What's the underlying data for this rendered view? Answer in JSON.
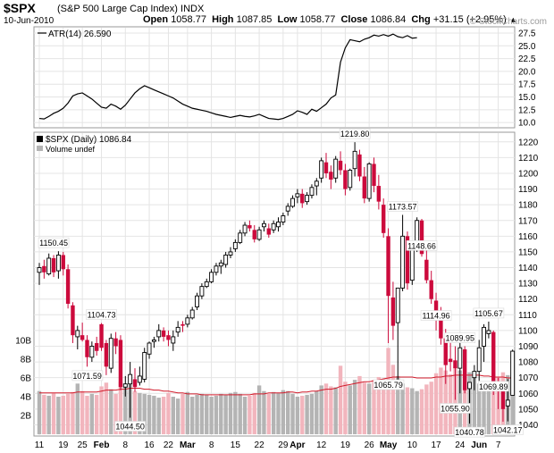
{
  "header": {
    "symbol": "$SPX",
    "name": "(S&P 500 Large Cap Index)",
    "exchange": "INDX",
    "date": "10-Jun-2010",
    "open_label": "Open",
    "open": "1058.77",
    "high_label": "High",
    "high": "1087.85",
    "low_label": "Low",
    "low": "1058.77",
    "close_label": "Close",
    "close": "1086.84",
    "chg_label": "Chg",
    "chg": "+31.15 (+2.95%)",
    "arrow": "▲",
    "watermark": "© StockCharts.com"
  },
  "colors": {
    "up": "#000000",
    "down": "#cc0a3c",
    "vol_up": "#b4b4b4",
    "vol_down": "#f2b5bd",
    "vol_ma": "#d11a2a",
    "atr": "#000000"
  },
  "chart_data": [
    {
      "type": "line",
      "title": "ATR(14) 26.590",
      "series": [
        {
          "name": "ATR(14)",
          "values": [
            10.8,
            10.7,
            11.2,
            11.8,
            12.2,
            12.8,
            13.8,
            15.2,
            15.6,
            15.8,
            15.2,
            14.6,
            13.8,
            13.0,
            12.8,
            13.6,
            13.2,
            12.6,
            13.4,
            14.6,
            15.8,
            16.6,
            17.2,
            16.8,
            16.4,
            16.0,
            15.6,
            15.2,
            14.8,
            14.2,
            13.6,
            13.2,
            12.8,
            12.6,
            12.4,
            12.2,
            11.9,
            11.6,
            11.4,
            11.2,
            11.0,
            11.2,
            11.4,
            11.2,
            11.1,
            11.3,
            11.6,
            11.2,
            10.8,
            10.7,
            10.6,
            10.8,
            11.2,
            11.6,
            12.3,
            12.0,
            11.6,
            12.6,
            12.2,
            12.9,
            13.6,
            14.8,
            15.4,
            21.8,
            24.6,
            26.2,
            26.0,
            25.8,
            26.3,
            26.6,
            27.1,
            26.9,
            27.2,
            26.9,
            27.3,
            26.8,
            26.6,
            27.0,
            26.5,
            26.59
          ]
        }
      ],
      "yticks": [
        10.0,
        12.5,
        15.0,
        17.5,
        20.0,
        22.5,
        25.0,
        27.5
      ],
      "ytick_labels": [
        "10.0",
        "12.5",
        "15.0",
        "17.5",
        "20.0",
        "22.5",
        "25.0",
        "27.5"
      ],
      "ylim": [
        9.5,
        28.2
      ]
    },
    {
      "type": "candlestick",
      "title": "$SPX (Daily) 1086.84",
      "legend": [
        "$SPX (Daily) 1086.84",
        "Volume undef"
      ],
      "ylim": [
        1034,
        1225
      ],
      "yticks": [
        1040,
        1050,
        1060,
        1070,
        1080,
        1090,
        1100,
        1110,
        1120,
        1130,
        1140,
        1150,
        1160,
        1170,
        1180,
        1190,
        1200,
        1210,
        1220
      ],
      "ytick_labels": [
        "1040",
        "1050",
        "1060",
        "1070",
        "1080",
        "1090",
        "1100",
        "1110",
        "1120",
        "1130",
        "1140",
        "1150",
        "1160",
        "1170",
        "1180",
        "1190",
        "1200",
        "1210",
        "1220"
      ],
      "x_labels": [
        "11",
        "19",
        "25",
        "Feb",
        "8",
        "16",
        "22",
        "Mar",
        "8",
        "15",
        "22",
        "29",
        "Apr",
        "12",
        "19",
        "26",
        "May",
        "10",
        "17",
        "24",
        "Jun",
        "7"
      ],
      "x_label_index": [
        0,
        5,
        9,
        13,
        18,
        23,
        27,
        31,
        36,
        41,
        46,
        51,
        54,
        59,
        64,
        69,
        73,
        78,
        83,
        88,
        92,
        96
      ],
      "bold_labels": [
        "Feb",
        "Mar",
        "Apr",
        "May",
        "Jun"
      ],
      "annotations": [
        {
          "text": "1150.45",
          "index": 3,
          "value": 1150.45,
          "pos": "above"
        },
        {
          "text": "1104.73",
          "index": 13,
          "value": 1104.73,
          "pos": "above"
        },
        {
          "text": "1071.59",
          "index": 14,
          "value": 1071.59,
          "pos": "left"
        },
        {
          "text": "1044.50",
          "index": 19,
          "value": 1044.5,
          "pos": "below"
        },
        {
          "text": "1219.80",
          "index": 66,
          "value": 1219.8,
          "pos": "above"
        },
        {
          "text": "1173.57",
          "index": 76,
          "value": 1173.57,
          "pos": "above"
        },
        {
          "text": "1148.66",
          "index": 80,
          "value": 1148.66,
          "pos": "above"
        },
        {
          "text": "1114.96",
          "index": 83,
          "value": 1114.96,
          "pos": "below"
        },
        {
          "text": "1065.79",
          "index": 77,
          "value": 1065.79,
          "pos": "left"
        },
        {
          "text": "1089.95",
          "index": 88,
          "value": 1089.95,
          "pos": "above"
        },
        {
          "text": "1105.67",
          "index": 94,
          "value": 1105.67,
          "pos": "above"
        },
        {
          "text": "1069.89",
          "index": 95,
          "value": 1069.89,
          "pos": "below"
        },
        {
          "text": "1055.90",
          "index": 87,
          "value": 1055.9,
          "pos": "below"
        },
        {
          "text": "1040.78",
          "index": 90,
          "value": 1040.78,
          "pos": "below"
        },
        {
          "text": "1042.17",
          "index": 98,
          "value": 1042.17,
          "pos": "below"
        }
      ],
      "ohlc": [
        [
          1137,
          1143,
          1129,
          1140
        ],
        [
          1141,
          1145,
          1133,
          1137
        ],
        [
          1136,
          1149,
          1135,
          1146
        ],
        [
          1146,
          1148,
          1134,
          1137
        ],
        [
          1138,
          1150.45,
          1133,
          1148
        ],
        [
          1148,
          1150,
          1135,
          1139
        ],
        [
          1139,
          1142,
          1114,
          1117
        ],
        [
          1116,
          1118,
          1092,
          1097
        ],
        [
          1096,
          1103,
          1088,
          1100
        ],
        [
          1097,
          1105,
          1093,
          1094
        ],
        [
          1094,
          1097,
          1077,
          1083
        ],
        [
          1083,
          1093,
          1080,
          1090
        ],
        [
          1092,
          1096,
          1084,
          1087
        ],
        [
          1104,
          1104.73,
          1087,
          1089
        ],
        [
          1092,
          1094,
          1071.59,
          1077
        ],
        [
          1076,
          1098,
          1073,
          1095
        ],
        [
          1095,
          1099,
          1085,
          1090
        ],
        [
          1094,
          1097,
          1062,
          1064
        ],
        [
          1064,
          1071,
          1058,
          1066
        ],
        [
          1066,
          1080,
          1044.5,
          1072
        ],
        [
          1069,
          1076,
          1061,
          1064
        ],
        [
          1067,
          1077,
          1065,
          1071
        ],
        [
          1069,
          1089,
          1067,
          1086
        ],
        [
          1085,
          1093,
          1082,
          1092
        ],
        [
          1093,
          1096,
          1089,
          1094
        ],
        [
          1096,
          1104,
          1093,
          1100
        ],
        [
          1100,
          1102,
          1093,
          1096
        ],
        [
          1097,
          1100,
          1090,
          1094
        ],
        [
          1092,
          1100,
          1087,
          1096
        ],
        [
          1099,
          1106,
          1096,
          1102
        ],
        [
          1104,
          1106,
          1099,
          1103
        ],
        [
          1104,
          1110,
          1102,
          1108
        ],
        [
          1108,
          1115,
          1107,
          1113
        ],
        [
          1115,
          1124,
          1113,
          1122
        ],
        [
          1122,
          1130,
          1120,
          1128
        ],
        [
          1128,
          1133,
          1127,
          1131
        ],
        [
          1131,
          1139,
          1130,
          1137
        ],
        [
          1137,
          1143,
          1135,
          1141
        ],
        [
          1141,
          1145,
          1136,
          1143
        ],
        [
          1142,
          1150,
          1140,
          1148
        ],
        [
          1148,
          1153,
          1146,
          1150
        ],
        [
          1152,
          1158,
          1150,
          1156
        ],
        [
          1156,
          1164,
          1155,
          1162
        ],
        [
          1162,
          1169,
          1160,
          1167
        ],
        [
          1167,
          1170,
          1163,
          1165
        ],
        [
          1164,
          1167,
          1156,
          1158
        ],
        [
          1158,
          1166,
          1157,
          1164
        ],
        [
          1166,
          1170,
          1163,
          1168
        ],
        [
          1165,
          1168,
          1159,
          1161
        ],
        [
          1164,
          1170,
          1162,
          1168
        ],
        [
          1166,
          1172,
          1163,
          1169
        ],
        [
          1169,
          1175,
          1167,
          1173
        ],
        [
          1176,
          1181,
          1173,
          1179
        ],
        [
          1179,
          1186,
          1178,
          1184
        ],
        [
          1185,
          1190,
          1181,
          1187
        ],
        [
          1187,
          1190,
          1178,
          1181
        ],
        [
          1182,
          1188,
          1180,
          1186
        ],
        [
          1186,
          1193,
          1184,
          1191
        ],
        [
          1192,
          1197,
          1186,
          1195
        ],
        [
          1197,
          1210,
          1194,
          1208
        ],
        [
          1207,
          1213,
          1197,
          1200
        ],
        [
          1201,
          1205,
          1190,
          1196
        ],
        [
          1197,
          1211,
          1194,
          1209
        ],
        [
          1208,
          1214,
          1199,
          1202
        ],
        [
          1202,
          1206,
          1186,
          1190
        ],
        [
          1191,
          1203,
          1189,
          1202
        ],
        [
          1203,
          1219.8,
          1198,
          1214
        ],
        [
          1212,
          1215,
          1195,
          1198
        ],
        [
          1198,
          1204,
          1181,
          1184
        ],
        [
          1184,
          1207,
          1182,
          1206
        ],
        [
          1206,
          1210,
          1188,
          1192
        ],
        [
          1192,
          1199,
          1177,
          1182
        ],
        [
          1180,
          1184,
          1159,
          1162
        ],
        [
          1160,
          1165,
          1092,
          1122
        ],
        [
          1121,
          1131,
          1094,
          1103
        ],
        [
          1105,
          1127,
          1065.79,
          1127
        ],
        [
          1127,
          1173.57,
          1125,
          1160
        ],
        [
          1160,
          1163,
          1126,
          1130
        ],
        [
          1132,
          1157,
          1129,
          1154
        ],
        [
          1155,
          1172,
          1150,
          1170
        ],
        [
          1170,
          1171,
          1147,
          1148.66
        ],
        [
          1145,
          1152,
          1130,
          1132
        ],
        [
          1132,
          1138,
          1117,
          1120
        ],
        [
          1119,
          1124,
          1100,
          1108
        ],
        [
          1108,
          1114.96,
          1091,
          1095
        ],
        [
          1095,
          1101,
          1066,
          1078
        ],
        [
          1082,
          1093,
          1074,
          1080
        ],
        [
          1081,
          1089.95,
          1055.9,
          1076
        ],
        [
          1076,
          1093,
          1060,
          1089
        ],
        [
          1088,
          1090,
          1060,
          1062
        ],
        [
          1063,
          1067,
          1040.78,
          1067
        ],
        [
          1070,
          1078,
          1062,
          1074
        ],
        [
          1074,
          1094,
          1068,
          1089
        ],
        [
          1090,
          1104,
          1080,
          1102
        ],
        [
          1098,
          1105.67,
          1095,
          1100
        ],
        [
          1099,
          1100,
          1059,
          1064
        ],
        [
          1064,
          1069.89,
          1050,
          1062
        ],
        [
          1063,
          1066,
          1042,
          1050
        ],
        [
          1052,
          1069,
          1042.17,
          1055.69
        ],
        [
          1058.77,
          1087.85,
          1058.77,
          1086.84
        ]
      ]
    },
    {
      "type": "bar",
      "title": "Volume",
      "yticks": [
        2,
        4,
        6,
        8,
        10
      ],
      "ytick_labels": [
        "2B",
        "4B",
        "6B",
        "8B",
        "10B"
      ],
      "ylim": [
        0,
        12
      ],
      "values": [
        4.6,
        4.2,
        4.1,
        4.4,
        4.0,
        4.1,
        4.3,
        4.5,
        5.4,
        4.6,
        4.1,
        4.3,
        4.2,
        5.1,
        5.5,
        4.8,
        4.3,
        5.6,
        5.2,
        5.3,
        4.6,
        4.4,
        4.3,
        4.2,
        4.1,
        3.9,
        4.0,
        4.4,
        4.0,
        3.8,
        4.3,
        4.5,
        4.0,
        4.2,
        4.3,
        4.2,
        4.0,
        4.1,
        4.3,
        4.2,
        4.4,
        4.5,
        4.3,
        4.0,
        4.1,
        4.4,
        5.2,
        4.6,
        4.3,
        4.5,
        4.4,
        4.7,
        4.6,
        4.3,
        4.0,
        4.1,
        4.2,
        4.3,
        4.6,
        5.2,
        5.4,
        5.1,
        5.0,
        7.3,
        5.6,
        5.2,
        5.8,
        6.2,
        5.5,
        5.4,
        5.8,
        6.1,
        5.9,
        9.2,
        7.4,
        6.2,
        5.4,
        5.0,
        4.9,
        4.6,
        4.8,
        5.3,
        5.6,
        6.5,
        7.1,
        6.8,
        6.4,
        7.2,
        6.8,
        6.5,
        6.6,
        6.0,
        5.4,
        5.6,
        5.2,
        5.1,
        6.1,
        6.6,
        6.3,
        5.9
      ],
      "ma": [
        4.4,
        4.4,
        4.4,
        4.4,
        4.4,
        4.4,
        4.4,
        4.4,
        4.5,
        4.5,
        4.5,
        4.5,
        4.5,
        4.6,
        4.7,
        4.7,
        4.7,
        4.8,
        4.8,
        4.9,
        4.9,
        4.9,
        4.8,
        4.8,
        4.7,
        4.7,
        4.6,
        4.6,
        4.5,
        4.4,
        4.4,
        4.3,
        4.3,
        4.3,
        4.2,
        4.2,
        4.2,
        4.2,
        4.2,
        4.2,
        4.2,
        4.2,
        4.2,
        4.2,
        4.2,
        4.3,
        4.3,
        4.3,
        4.4,
        4.4,
        4.4,
        4.4,
        4.5,
        4.5,
        4.4,
        4.5,
        4.5,
        4.6,
        4.6,
        4.7,
        4.8,
        4.8,
        4.9,
        5.1,
        5.2,
        5.3,
        5.4,
        5.5,
        5.6,
        5.6,
        5.7,
        5.8,
        5.9,
        6.0,
        6.1,
        6.1,
        6.1,
        6.1,
        6.1,
        6.0,
        6.0,
        6.0,
        6.0,
        6.1,
        6.1,
        6.2,
        6.2,
        6.3,
        6.3,
        6.3,
        6.3,
        6.3,
        6.3,
        6.2,
        6.2,
        6.1,
        6.1,
        6.1,
        6.0,
        6.0
      ]
    }
  ]
}
